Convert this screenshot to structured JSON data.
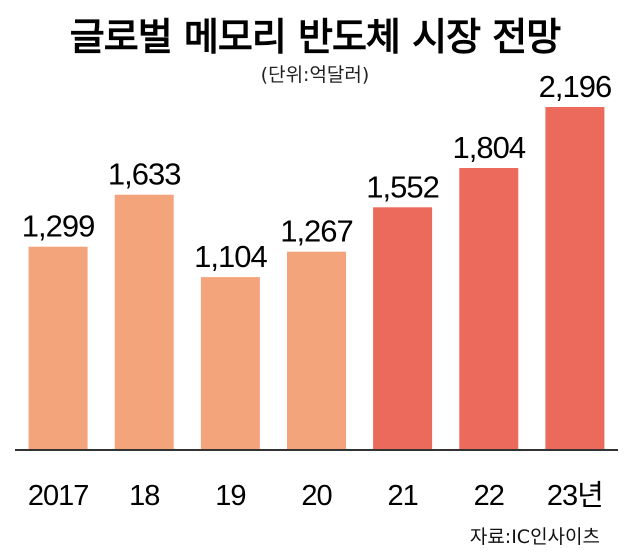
{
  "chart_data": {
    "type": "bar",
    "title": "글로벌 메모리 반도체 시장 전망",
    "subtitle": "(단위:억달러)",
    "source": "자료:IC인사이츠",
    "categories": [
      "2017",
      "18",
      "19",
      "20",
      "21",
      "22",
      "23년"
    ],
    "values": [
      1299,
      1633,
      1104,
      1267,
      1552,
      1804,
      2196
    ],
    "value_labels": [
      "1,299",
      "1,633",
      "1,104",
      "1,267",
      "1,552",
      "1,804",
      "2,196"
    ],
    "ylim": [
      0,
      2196
    ],
    "colors": [
      "#F4A47A",
      "#F4A47A",
      "#F4A47A",
      "#F4A47A",
      "#EC6A5C",
      "#EC6A5C",
      "#EC6A5C"
    ],
    "axis_color": "#333333",
    "grid": false
  }
}
